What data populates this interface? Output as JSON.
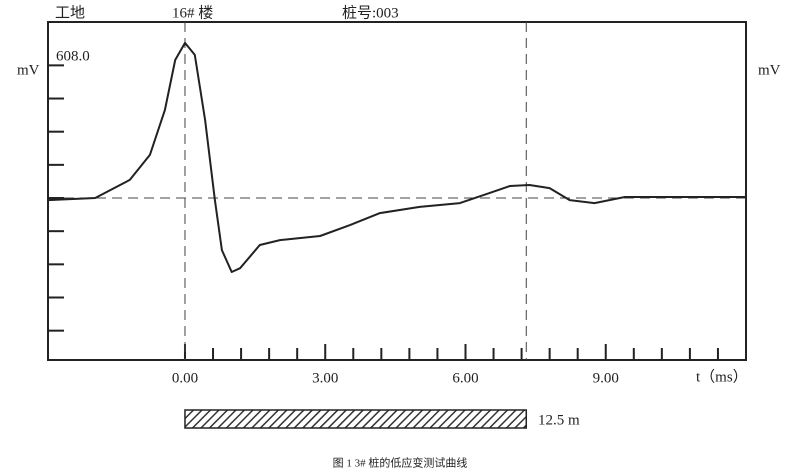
{
  "chart_data": {
    "type": "line",
    "header": [
      "工地",
      "16# 楼",
      "桩号:003"
    ],
    "y_unit_left": "mV",
    "y_unit_right": "mV",
    "peak_label": {
      "value": 608,
      "label": "608.0"
    },
    "xlabel": "t（ms）",
    "x": [
      -2.93,
      -1.92,
      -1.18,
      -0.75,
      -0.43,
      -0.21,
      0,
      0.21,
      0.43,
      0.64,
      0.79,
      1.0,
      1.18,
      1.6,
      2.03,
      2.89,
      3.53,
      4.17,
      5.02,
      5.88,
      6.52,
      6.95,
      7.37,
      7.8,
      8.23,
      8.76,
      9.41,
      10.58,
      12.0
    ],
    "series": [
      {
        "color": "#222222",
        "values": [
          -8,
          0,
          71,
          169,
          345,
          541,
          608,
          561,
          306,
          -8,
          -204,
          -290,
          -275,
          -184,
          -165,
          -149,
          -106,
          -59,
          -35,
          -20,
          20,
          47,
          51,
          39,
          -8,
          -20,
          4,
          4,
          4
        ]
      }
    ],
    "xlim": [
      -2.93,
      12.0
    ],
    "ylim": [
      -635,
      690
    ],
    "xticks": [
      {
        "value": 0,
        "label": "0.00"
      },
      {
        "value": 3,
        "label": "3.00"
      },
      {
        "value": 6,
        "label": "6.00"
      },
      {
        "value": 9,
        "label": "9.00"
      }
    ],
    "xminorticks": [
      0.6,
      1.2,
      1.8,
      2.4,
      3.6,
      4.2,
      4.8,
      5.4,
      6.6,
      7.2,
      7.8,
      8.4,
      9.6,
      10.2,
      10.8,
      11.4
    ],
    "yticks": [
      -520,
      -390,
      -260,
      -130,
      0,
      130,
      260,
      390,
      520
    ],
    "markers": [
      0,
      7.3
    ],
    "pile_length_label": "12.5 m",
    "caption": "图 1 3# 桩的低应变测试曲线"
  }
}
